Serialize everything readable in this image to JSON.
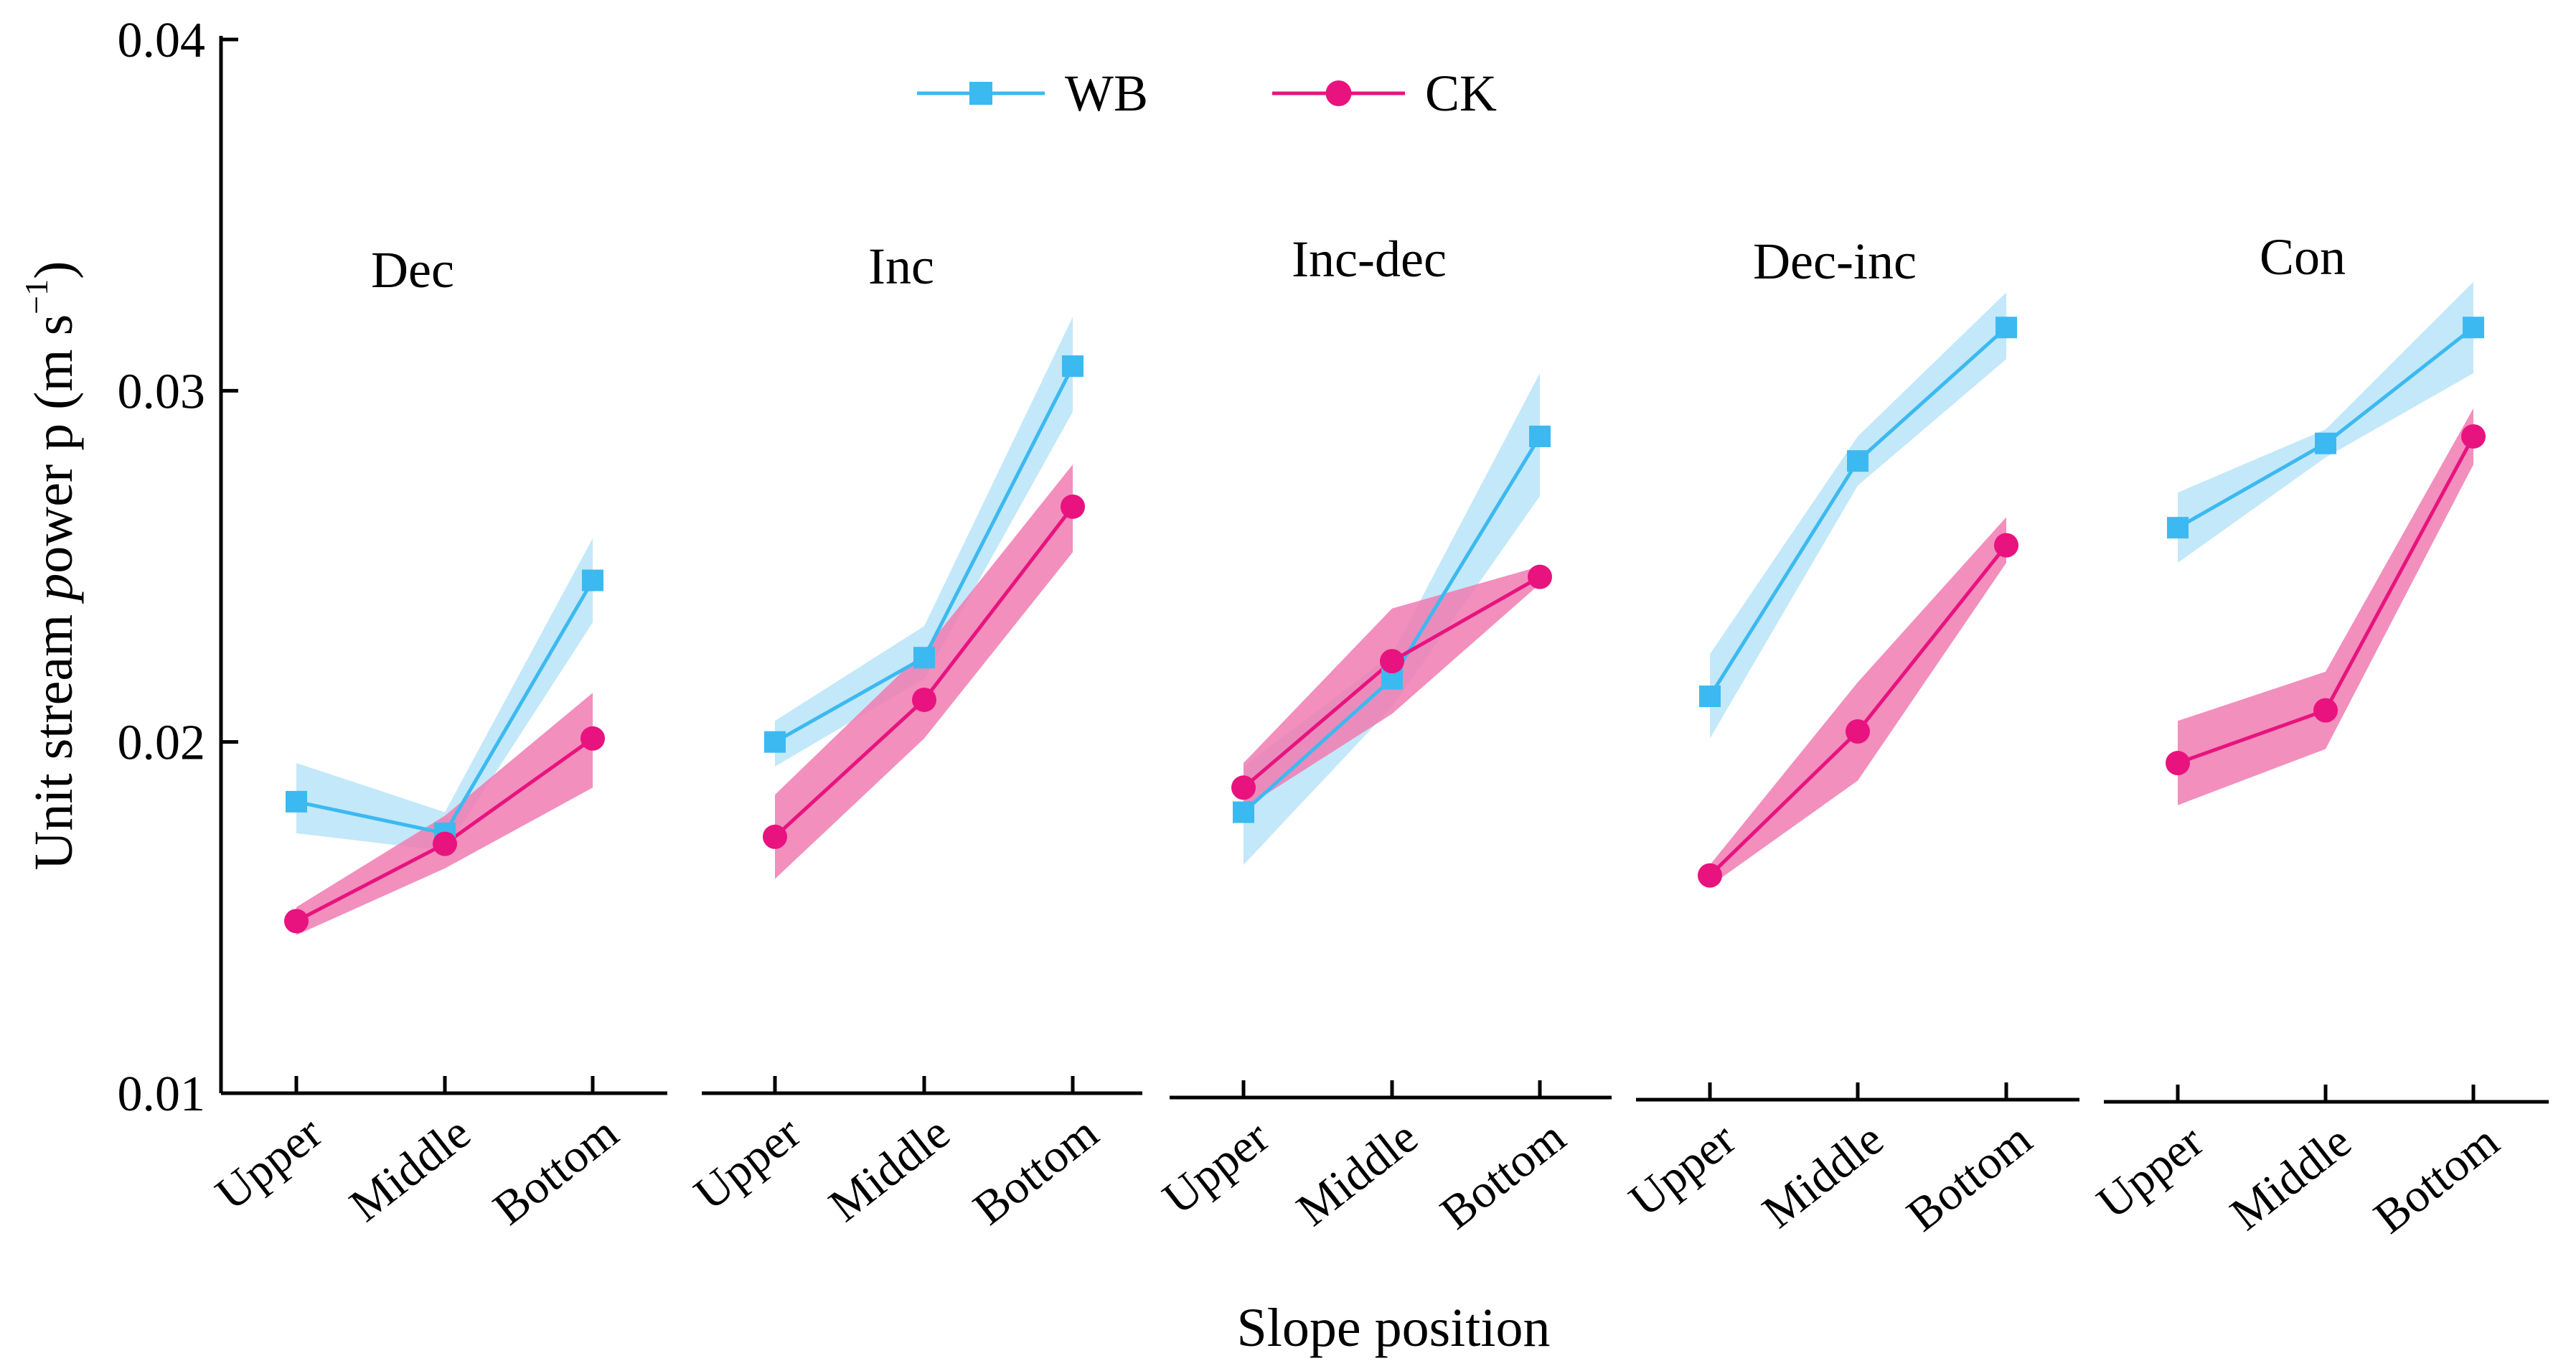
{
  "chart_data": {
    "type": "line",
    "ylabel": "Unit stream power p (m s−1)",
    "xlabel": "Slope position",
    "ylim": [
      0.01,
      0.04
    ],
    "yticks": [
      0.01,
      0.02,
      0.03,
      0.04
    ],
    "ytick_labels": [
      "0.01",
      "0.02",
      "0.03",
      "0.04"
    ],
    "categories": [
      "Upper",
      "Middle",
      "Bottom"
    ],
    "legend": {
      "position": "top-center",
      "entries": [
        "WB",
        "CK"
      ]
    },
    "colors": {
      "WB": "#3cb9f0",
      "CK": "#e8137e",
      "WB_band": "#bde5f8",
      "CK_band": "#f07bb1"
    },
    "panels": [
      {
        "title": "Dec",
        "series": [
          {
            "name": "WB",
            "values": [
              0.0183,
              0.0174,
              0.0246
            ],
            "lower": [
              0.0174,
              0.0169,
              0.0234
            ],
            "upper": [
              0.0194,
              0.018,
              0.0258
            ]
          },
          {
            "name": "CK",
            "values": [
              0.0149,
              0.0171,
              0.0201
            ],
            "lower": [
              0.0145,
              0.0164,
              0.0187
            ],
            "upper": [
              0.0153,
              0.0179,
              0.0214
            ]
          }
        ]
      },
      {
        "title": "Inc",
        "series": [
          {
            "name": "WB",
            "values": [
              0.02,
              0.0224,
              0.0307
            ],
            "lower": [
              0.0193,
              0.0218,
              0.0294
            ],
            "upper": [
              0.0206,
              0.0233,
              0.0321
            ]
          },
          {
            "name": "CK",
            "values": [
              0.0173,
              0.0212,
              0.0267
            ],
            "lower": [
              0.0161,
              0.0201,
              0.0254
            ],
            "upper": [
              0.0185,
              0.0226,
              0.0279
            ]
          }
        ]
      },
      {
        "title": "Inc-dec",
        "series": [
          {
            "name": "WB",
            "values": [
              0.018,
              0.0218,
              0.0287
            ],
            "lower": [
              0.0165,
              0.021,
              0.027
            ],
            "upper": [
              0.0193,
              0.0225,
              0.0305
            ]
          },
          {
            "name": "CK",
            "values": [
              0.0187,
              0.0223,
              0.0247
            ],
            "lower": [
              0.0181,
              0.0208,
              0.0245
            ],
            "upper": [
              0.0194,
              0.0238,
              0.025
            ]
          }
        ]
      },
      {
        "title": "Dec-inc",
        "series": [
          {
            "name": "WB",
            "values": [
              0.0213,
              0.028,
              0.0318
            ],
            "lower": [
              0.0201,
              0.0273,
              0.0309
            ],
            "upper": [
              0.0225,
              0.0287,
              0.0328
            ]
          },
          {
            "name": "CK",
            "values": [
              0.0162,
              0.0203,
              0.0256
            ],
            "lower": [
              0.0159,
              0.0189,
              0.0251
            ],
            "upper": [
              0.0165,
              0.0217,
              0.0264
            ]
          }
        ]
      },
      {
        "title": "Con",
        "series": [
          {
            "name": "WB",
            "values": [
              0.0261,
              0.0285,
              0.0318
            ],
            "lower": [
              0.0251,
              0.0281,
              0.0305
            ],
            "upper": [
              0.0271,
              0.0289,
              0.0331
            ]
          },
          {
            "name": "CK",
            "values": [
              0.0194,
              0.0209,
              0.0287
            ],
            "lower": [
              0.0182,
              0.0198,
              0.0279
            ],
            "upper": [
              0.0206,
              0.022,
              0.0295
            ]
          }
        ]
      }
    ]
  }
}
